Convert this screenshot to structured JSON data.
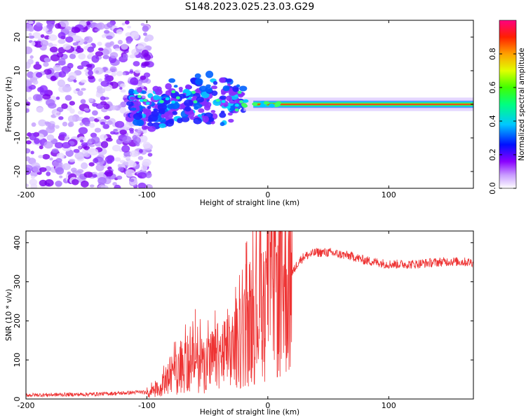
{
  "title": "S148.2023.025.23.03.G29",
  "colors": {
    "snr_line": "#ee3333",
    "frame": "#000000"
  },
  "chart_data": [
    {
      "type": "heatmap",
      "name": "spectrogram",
      "xlabel": "Height of straight line (km)",
      "ylabel": "Frequency (Hz)",
      "xlim": [
        -200,
        170
      ],
      "ylim": [
        -25,
        25
      ],
      "xticks": [
        -200,
        -100,
        0,
        100
      ],
      "xtick_labels": [
        "-200",
        "-100",
        "0",
        "100"
      ],
      "yticks": [
        -20,
        -10,
        0,
        10,
        20
      ],
      "ytick_labels": [
        "-20",
        "-10",
        "0",
        "10",
        "20"
      ],
      "colorbar": {
        "label": "Normalized spectral amplitude",
        "range": [
          0,
          1
        ],
        "ticks": [
          0.0,
          0.2,
          0.4,
          0.6,
          0.8
        ],
        "tick_labels": [
          "0.0",
          "0.2",
          "0.4",
          "0.6",
          "0.8"
        ],
        "colormap": "rainbow (white-purple-blue-cyan-green-yellow-orange-red-magenta)"
      },
      "features": {
        "noise_region_x": [
          -200,
          -105
        ],
        "scattered_signal_x": [
          -115,
          -20
        ],
        "coherent_line_x": [
          -20,
          170
        ],
        "coherent_line_frequency_hz": 0
      }
    },
    {
      "type": "line",
      "name": "snr",
      "xlabel": "Height of straight line (km)",
      "ylabel": "SNR (10 * v/v)",
      "xlim": [
        -200,
        170
      ],
      "ylim": [
        0,
        430
      ],
      "xticks": [
        -200,
        -100,
        0,
        100
      ],
      "xtick_labels": [
        "-200",
        "-100",
        "0",
        "100"
      ],
      "yticks": [
        0,
        100,
        200,
        300,
        400
      ],
      "ytick_labels": [
        "0",
        "100",
        "200",
        "300",
        "400"
      ],
      "series": [
        {
          "name": "SNR",
          "x": [
            -200,
            -150,
            -120,
            -105,
            -100,
            -90,
            -80,
            -70,
            -60,
            -50,
            -40,
            -30,
            -25,
            -20,
            -15,
            -10,
            0,
            10,
            15,
            20,
            25,
            30,
            40,
            50,
            60,
            70,
            80,
            100,
            120,
            140,
            150,
            170
          ],
          "y": [
            10,
            12,
            15,
            18,
            15,
            25,
            60,
            80,
            100,
            90,
            110,
            120,
            140,
            160,
            200,
            230,
            280,
            290,
            300,
            320,
            350,
            365,
            375,
            375,
            370,
            365,
            355,
            345,
            345,
            350,
            352,
            350
          ]
        }
      ],
      "spikes": [
        {
          "x": -60,
          "y": 230
        },
        {
          "x": -18,
          "y": 400
        },
        {
          "x": 5,
          "y": 380
        },
        {
          "x": 10,
          "y": 430
        },
        {
          "x": 10,
          "y": 120
        }
      ]
    }
  ]
}
